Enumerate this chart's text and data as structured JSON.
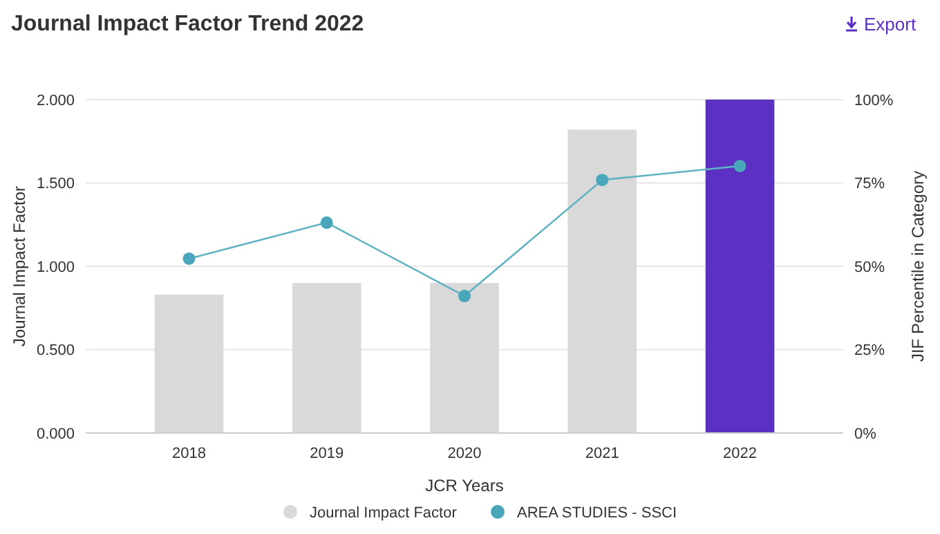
{
  "chart_data": {
    "type": "bar",
    "title": "Journal Impact Factor Trend 2022",
    "xlabel": "JCR Years",
    "ylabel": "Journal Impact Factor",
    "y2label": "JIF Percentile in Category",
    "categories": [
      "2018",
      "2019",
      "2020",
      "2021",
      "2022"
    ],
    "series": [
      {
        "name": "Journal Impact Factor",
        "color": "#d9d9d9",
        "colors": [
          "#d9d9d9",
          "#d9d9d9",
          "#d9d9d9",
          "#d9d9d9",
          "#5b30c2"
        ],
        "values": [
          0.83,
          0.9,
          0.9,
          1.82,
          2.0
        ]
      },
      {
        "name": "AREA STUDIES - SSCI",
        "type": "line",
        "axis": "y2",
        "color": "#5fb3c2",
        "values": [
          52.3,
          63.1,
          41.1,
          75.9,
          80.1
        ]
      }
    ],
    "ylim": [
      0,
      2
    ],
    "yticks": [
      {
        "value": 0,
        "label": "0.000"
      },
      {
        "value": 0.5,
        "label": "0.500"
      },
      {
        "value": 1,
        "label": "1.000"
      },
      {
        "value": 1.5,
        "label": "1.500"
      },
      {
        "value": 2,
        "label": "2.000"
      }
    ],
    "y2lim": [
      0,
      100
    ],
    "y2ticks": [
      {
        "value": 0,
        "label": "0%"
      },
      {
        "value": 25,
        "label": "25%"
      },
      {
        "value": 50,
        "label": "50%"
      },
      {
        "value": 75,
        "label": "75%"
      },
      {
        "value": 100,
        "label": "100%"
      }
    ],
    "grid": "y",
    "legend": "bottom",
    "marker": "circle",
    "annotations": [
      "Export"
    ]
  }
}
